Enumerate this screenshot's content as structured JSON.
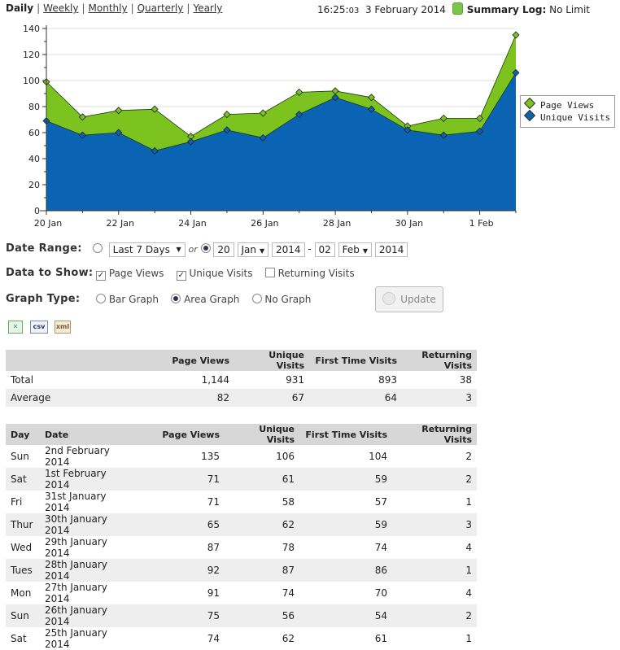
{
  "nav": {
    "periods": [
      "Daily",
      "Weekly",
      "Monthly",
      "Quarterly",
      "Yearly"
    ],
    "active": "Daily",
    "time": "16:25:",
    "time_sec": "03",
    "date": "3 February 2014",
    "summary_label": "Summary Log:",
    "summary_value": "No Limit"
  },
  "colors": {
    "page_views": "#7cc31f",
    "unique_visits": "#0b63b3"
  },
  "chart_data": {
    "type": "area",
    "x": [
      "2014-01-20",
      "2014-01-21",
      "2014-01-22",
      "2014-01-23",
      "2014-01-24",
      "2014-01-25",
      "2014-01-26",
      "2014-01-27",
      "2014-01-28",
      "2014-01-29",
      "2014-01-30",
      "2014-01-31",
      "2014-02-01",
      "2014-02-02"
    ],
    "x_tick_labels": [
      "20 Jan",
      "22 Jan",
      "24 Jan",
      "26 Jan",
      "28 Jan",
      "30 Jan",
      "1 Feb"
    ],
    "y_tick_labels": [
      "0",
      "20",
      "40",
      "60",
      "80",
      "100",
      "120",
      "140"
    ],
    "ylim": [
      0,
      140
    ],
    "grid": true,
    "legend_position": "right",
    "series": [
      {
        "name": "Page Views",
        "values": [
          99,
          72,
          77,
          78,
          57,
          74,
          75,
          91,
          92,
          87,
          65,
          71,
          71,
          135
        ]
      },
      {
        "name": "Unique Visits",
        "values": [
          69,
          58,
          60,
          46,
          53,
          62,
          56,
          74,
          87,
          78,
          62,
          58,
          61,
          106
        ]
      }
    ]
  },
  "controls": {
    "date_range_label": "Date Range:",
    "preset": "Last 7 Days",
    "or": "or",
    "from_day": "20",
    "from_month": "Jan",
    "from_year": "2014",
    "dash": "-",
    "to_day": "02",
    "to_month": "Feb",
    "to_year": "2014",
    "data_label": "Data to Show:",
    "cb_page_views": "Page Views",
    "cb_unique_visits": "Unique Visits",
    "cb_returning": "Returning Visits",
    "graph_label": "Graph Type:",
    "g_bar": "Bar Graph",
    "g_area": "Area Graph",
    "g_none": "No Graph",
    "update": "Update",
    "export_csv": "csv",
    "export_xml": "xml"
  },
  "summary_table": {
    "headers": [
      "",
      "Page Views",
      "Unique Visits",
      "First Time Visits",
      "Returning Visits"
    ],
    "rows": [
      [
        "Total",
        "1,144",
        "931",
        "893",
        "38"
      ],
      [
        "Average",
        "82",
        "67",
        "64",
        "3"
      ]
    ]
  },
  "daily_table": {
    "headers": [
      "Day",
      "Date",
      "Page Views",
      "Unique Visits",
      "First Time Visits",
      "Returning Visits"
    ],
    "rows": [
      [
        "Sun",
        "2nd February 2014",
        "135",
        "106",
        "104",
        "2"
      ],
      [
        "Sat",
        "1st February 2014",
        "71",
        "61",
        "59",
        "2"
      ],
      [
        "Fri",
        "31st January 2014",
        "71",
        "58",
        "57",
        "1"
      ],
      [
        "Thur",
        "30th January 2014",
        "65",
        "62",
        "59",
        "3"
      ],
      [
        "Wed",
        "29th January 2014",
        "87",
        "78",
        "74",
        "4"
      ],
      [
        "Tues",
        "28th January 2014",
        "92",
        "87",
        "86",
        "1"
      ],
      [
        "Mon",
        "27th January 2014",
        "91",
        "74",
        "70",
        "4"
      ],
      [
        "Sun",
        "26th January 2014",
        "75",
        "56",
        "54",
        "2"
      ],
      [
        "Sat",
        "25th January 2014",
        "74",
        "62",
        "61",
        "1"
      ]
    ]
  }
}
